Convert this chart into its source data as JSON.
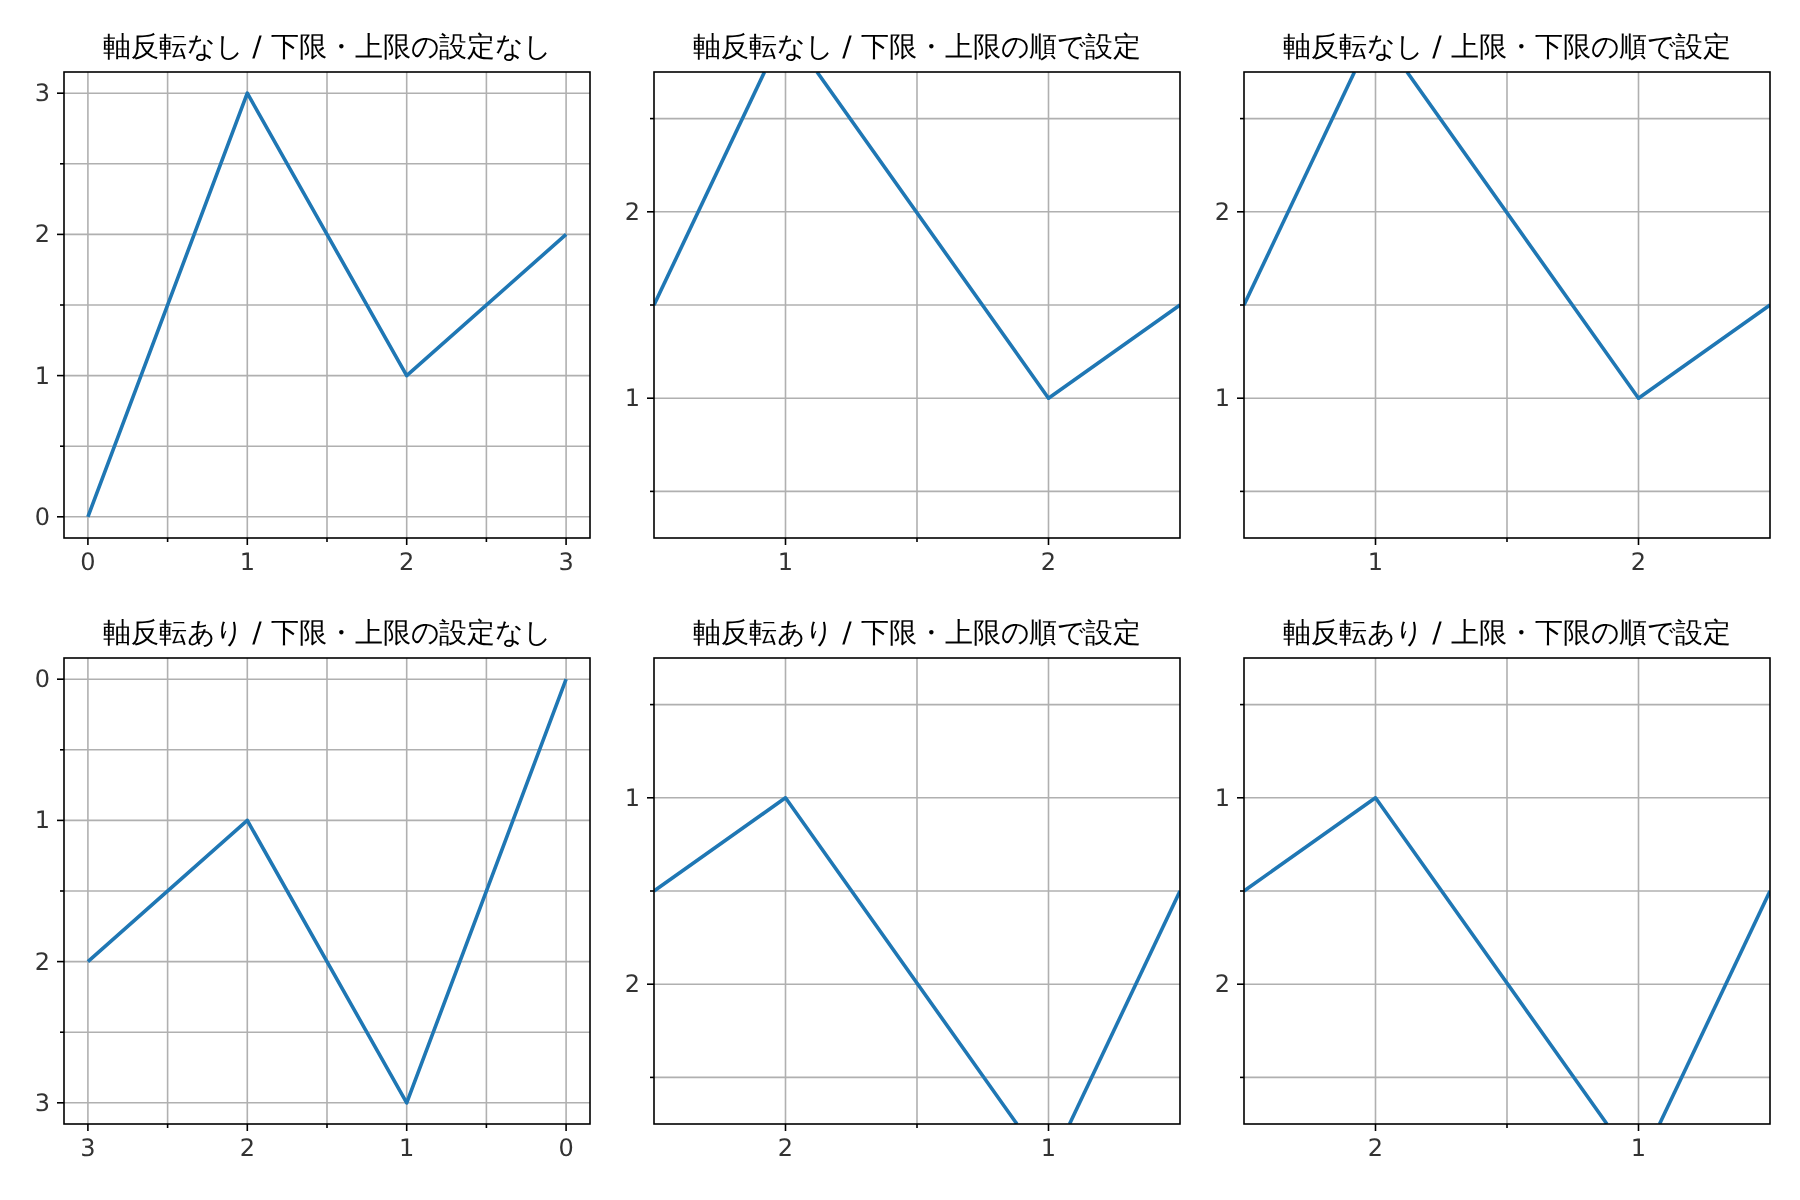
{
  "chart_data": [
    {
      "type": "line",
      "title": "軸反転なし / 下限・上限の設定なし",
      "series": [
        {
          "color": "#1f77b4",
          "x": [
            0,
            1,
            2,
            3
          ],
          "values": [
            0,
            3,
            1,
            2
          ]
        }
      ],
      "xlim": [
        -0.15,
        3.15
      ],
      "ylim": [
        -0.15,
        3.15
      ],
      "xticks": [
        0,
        {
          "value": 0.5,
          "label": null
        },
        1,
        {
          "value": 1.5,
          "label": null
        },
        2,
        {
          "value": 2.5,
          "label": null
        },
        3
      ],
      "yticks": [
        0,
        {
          "value": 0.5,
          "label": null
        },
        1,
        {
          "value": 1.5,
          "label": null
        },
        2,
        {
          "value": 2.5,
          "label": null
        },
        3
      ],
      "grid": true
    },
    {
      "type": "line",
      "title": "軸反転なし / 下限・上限の順で設定",
      "series": [
        {
          "color": "#1f77b4",
          "x": [
            0.5,
            0.92
          ],
          "values": [
            1.5,
            2.75
          ]
        },
        {
          "color": "#1f77b4",
          "x": [
            1.12,
            2,
            2.5
          ],
          "values": [
            2.75,
            1,
            1.5
          ]
        }
      ],
      "xlim": [
        0.5,
        2.5
      ],
      "ylim": [
        0.25,
        2.75
      ],
      "xticks": [
        1,
        {
          "value": 1.5,
          "label": null
        },
        2
      ],
      "yticks": [
        {
          "value": 0.5,
          "label": null
        },
        1,
        {
          "value": 1.5,
          "label": null
        },
        2,
        {
          "value": 2.5,
          "label": null
        }
      ],
      "grid": true
    },
    {
      "type": "line",
      "title": "軸反転なし / 上限・下限の順で設定",
      "series": [
        {
          "color": "#1f77b4",
          "x": [
            0.5,
            0.92
          ],
          "values": [
            1.5,
            2.75
          ]
        },
        {
          "color": "#1f77b4",
          "x": [
            1.12,
            2,
            2.5
          ],
          "values": [
            2.75,
            1,
            1.5
          ]
        }
      ],
      "xlim": [
        0.5,
        2.5
      ],
      "ylim": [
        0.25,
        2.75
      ],
      "xticks": [
        1,
        {
          "value": 1.5,
          "label": null
        },
        2
      ],
      "yticks": [
        {
          "value": 0.5,
          "label": null
        },
        1,
        {
          "value": 1.5,
          "label": null
        },
        2,
        {
          "value": 2.5,
          "label": null
        }
      ],
      "grid": true
    },
    {
      "type": "line",
      "title": "軸反転あり / 下限・上限の設定なし",
      "series": [
        {
          "color": "#1f77b4",
          "x": [
            0,
            1,
            2,
            3
          ],
          "values": [
            0,
            3,
            1,
            2
          ]
        }
      ],
      "xlim": [
        3.15,
        -0.15
      ],
      "ylim": [
        3.15,
        -0.15
      ],
      "xticks": [
        0,
        {
          "value": 0.5,
          "label": null
        },
        1,
        {
          "value": 1.5,
          "label": null
        },
        2,
        {
          "value": 2.5,
          "label": null
        },
        3
      ],
      "yticks": [
        0,
        {
          "value": 0.5,
          "label": null
        },
        1,
        {
          "value": 1.5,
          "label": null
        },
        2,
        {
          "value": 2.5,
          "label": null
        },
        3
      ],
      "grid": true
    },
    {
      "type": "line",
      "title": "軸反転あり / 下限・上限の順で設定",
      "series": [
        {
          "color": "#1f77b4",
          "x": [
            0.5,
            0.92
          ],
          "values": [
            1.5,
            2.75
          ]
        },
        {
          "color": "#1f77b4",
          "x": [
            1.12,
            2,
            2.5
          ],
          "values": [
            2.75,
            1,
            1.5
          ]
        }
      ],
      "xlim": [
        2.5,
        0.5
      ],
      "ylim": [
        2.75,
        0.25
      ],
      "xticks": [
        1,
        {
          "value": 1.5,
          "label": null
        },
        2
      ],
      "yticks": [
        {
          "value": 0.5,
          "label": null
        },
        1,
        {
          "value": 1.5,
          "label": null
        },
        2,
        {
          "value": 2.5,
          "label": null
        }
      ],
      "grid": true
    },
    {
      "type": "line",
      "title": "軸反転あり / 上限・下限の順で設定",
      "series": [
        {
          "color": "#1f77b4",
          "x": [
            0.5,
            0.92
          ],
          "values": [
            1.5,
            2.75
          ]
        },
        {
          "color": "#1f77b4",
          "x": [
            1.12,
            2,
            2.5
          ],
          "values": [
            2.75,
            1,
            1.5
          ]
        }
      ],
      "xlim": [
        2.5,
        0.5
      ],
      "ylim": [
        2.75,
        0.25
      ],
      "xticks": [
        1,
        {
          "value": 1.5,
          "label": null
        },
        2
      ],
      "yticks": [
        {
          "value": 0.5,
          "label": null
        },
        1,
        {
          "value": 1.5,
          "label": null
        },
        2,
        {
          "value": 2.5,
          "label": null
        }
      ],
      "grid": true
    }
  ]
}
